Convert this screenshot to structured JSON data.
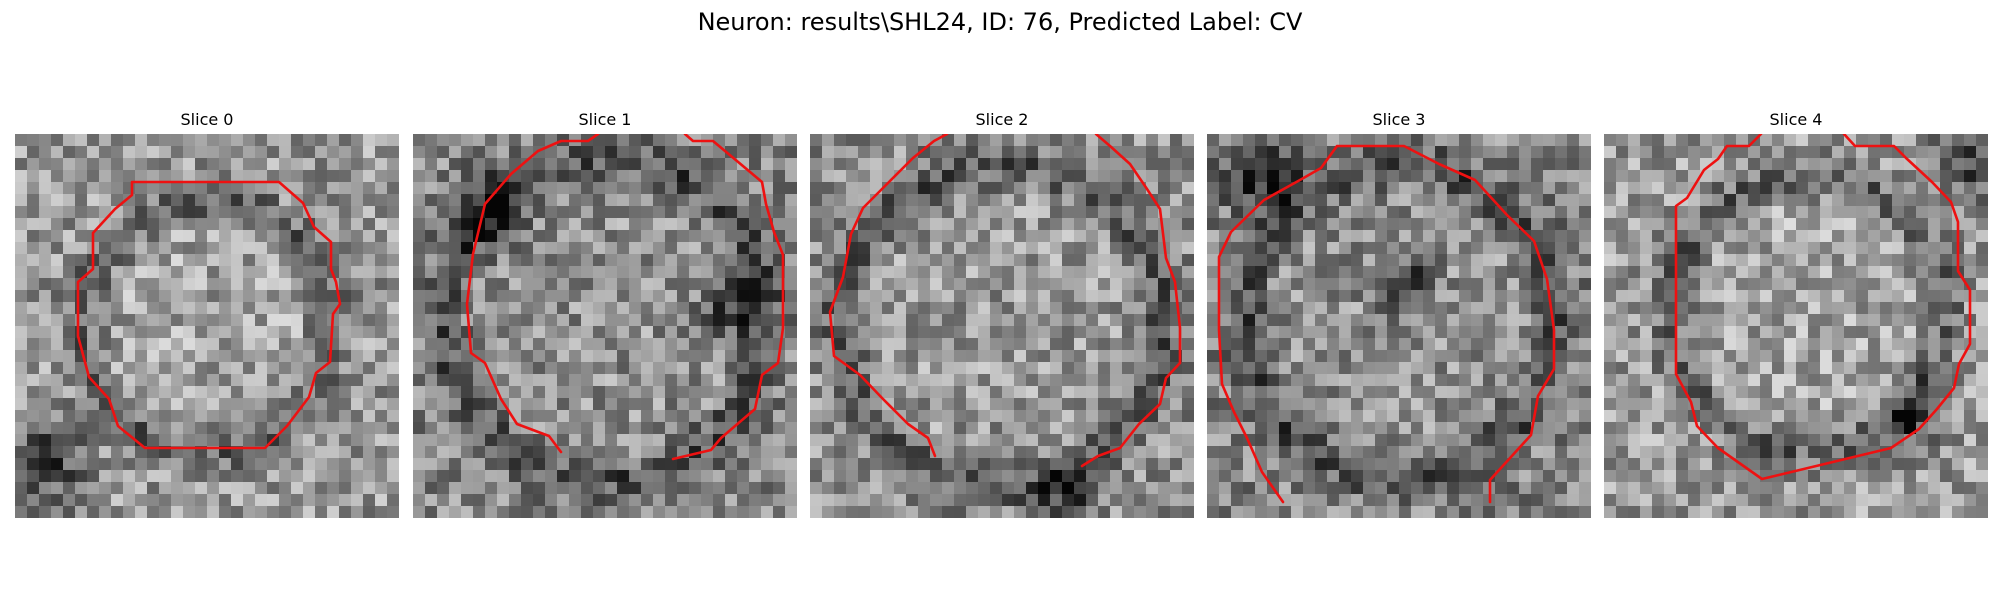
{
  "figure": {
    "title": "Neuron: results\\SHL24, ID: 76, Predicted Label: CV"
  },
  "panels": [
    {
      "title": "Slice 0"
    },
    {
      "title": "Slice 1"
    },
    {
      "title": "Slice 2"
    },
    {
      "title": "Slice 3"
    },
    {
      "title": "Slice 4"
    }
  ],
  "colors": {
    "contour": "#ee1111",
    "background": "#ffffff"
  }
}
